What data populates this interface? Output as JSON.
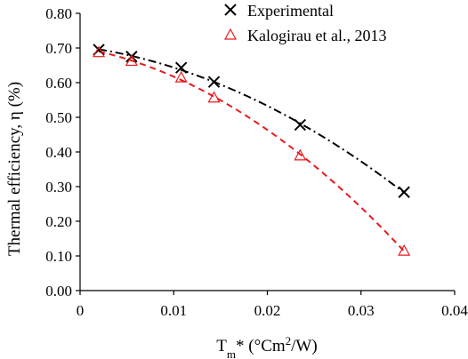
{
  "chart_data": {
    "type": "scatter",
    "xlabel_parts": {
      "base": "T",
      "sub": "m",
      "rest": "* (°Cm",
      "sup": "2",
      "end": "/W)"
    },
    "ylabel": "Thermal efficiency, η (%)",
    "xlim": [
      0,
      0.04
    ],
    "ylim": [
      0,
      0.8
    ],
    "x_ticks": [
      0,
      0.01,
      0.02,
      0.03,
      0.04
    ],
    "x_tick_labels": [
      "0",
      "0.01",
      "0.02",
      "0.03",
      "0.04"
    ],
    "y_ticks": [
      0,
      0.1,
      0.2,
      0.3,
      0.4,
      0.5,
      0.6,
      0.7,
      0.8
    ],
    "y_tick_labels": [
      "0.00",
      "0.10",
      "0.20",
      "0.30",
      "0.40",
      "0.50",
      "0.60",
      "0.70",
      "0.80"
    ],
    "grid": false,
    "legend_position": "top-right",
    "series": [
      {
        "name": "Experimental",
        "marker": "x",
        "color": "#000000",
        "trendline": "dash-dot",
        "x": [
          0.002,
          0.0055,
          0.0108,
          0.0143,
          0.0235,
          0.0346
        ],
        "y": [
          0.695,
          0.675,
          0.643,
          0.602,
          0.478,
          0.284
        ]
      },
      {
        "name": "Kalogirau et al., 2013",
        "marker": "triangle",
        "color": "#e8191c",
        "trendline": "dashed",
        "x": [
          0.002,
          0.0055,
          0.0108,
          0.0143,
          0.0235,
          0.0346
        ],
        "y": [
          0.688,
          0.663,
          0.615,
          0.557,
          0.39,
          0.115
        ]
      }
    ]
  }
}
